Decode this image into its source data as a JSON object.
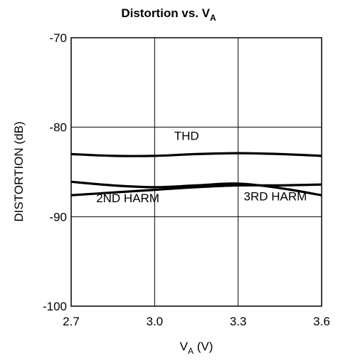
{
  "chart_data": {
    "type": "line",
    "title": "Distortion vs. V",
    "title_subscript": "A",
    "xlabel": "V",
    "xlabel_subscript": "A",
    "xlabel_unit": " (V)",
    "ylabel": "DISTORTION (dB)",
    "xlim": [
      2.7,
      3.6
    ],
    "ylim": [
      -100,
      -70
    ],
    "xticks": [
      2.7,
      3.0,
      3.3,
      3.6
    ],
    "xtick_labels": [
      "2.7",
      "3.0",
      "3.3",
      "3.6"
    ],
    "yticks": [
      -100,
      -90,
      -80,
      -70
    ],
    "ytick_labels": [
      "-100",
      "-90",
      "-80",
      "-70"
    ],
    "grid": true,
    "series": [
      {
        "label": "THD",
        "color": "#000000",
        "x": [
          2.7,
          2.85,
          3.0,
          3.15,
          3.3,
          3.45,
          3.6
        ],
        "y": [
          -83.0,
          -83.2,
          -83.2,
          -83.0,
          -82.9,
          -83.0,
          -83.2
        ]
      },
      {
        "label": "2ND HARM",
        "color": "#000000",
        "x": [
          2.7,
          2.85,
          3.0,
          3.15,
          3.3,
          3.45,
          3.6
        ],
        "y": [
          -87.6,
          -87.3,
          -87.0,
          -86.7,
          -86.5,
          -86.5,
          -86.4
        ]
      },
      {
        "label": "3RD HARM",
        "color": "#000000",
        "x": [
          2.7,
          2.85,
          3.0,
          3.15,
          3.3,
          3.45,
          3.6
        ],
        "y": [
          -86.1,
          -86.5,
          -86.7,
          -86.5,
          -86.3,
          -86.8,
          -87.6
        ]
      }
    ],
    "annotations": [
      {
        "text": "THD",
        "x": 3.07,
        "y": -81.4
      },
      {
        "text": "2ND HARM",
        "x": 2.79,
        "y": -88.4
      },
      {
        "text": "3RD HARM",
        "x": 3.32,
        "y": -88.2
      }
    ]
  }
}
